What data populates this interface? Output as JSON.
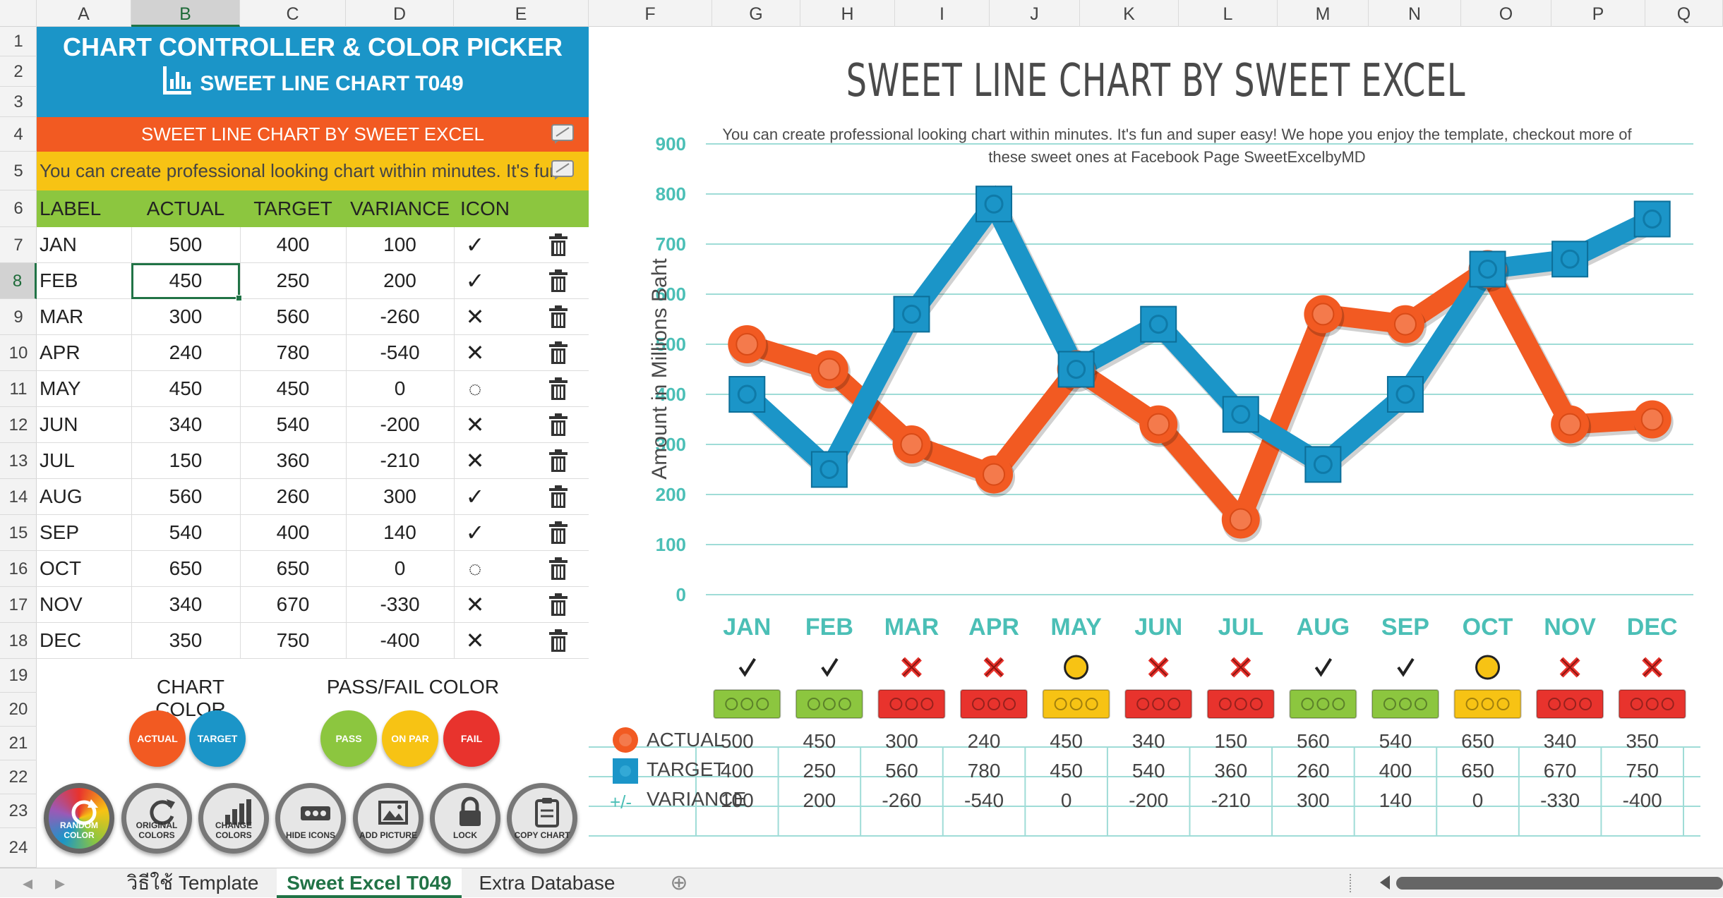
{
  "column_headers": [
    "A",
    "B",
    "C",
    "D",
    "E",
    "F",
    "G",
    "H",
    "I",
    "J",
    "K",
    "L",
    "M",
    "N",
    "O",
    "P",
    "Q"
  ],
  "row_headers": [
    "1",
    "2",
    "3",
    "4",
    "5",
    "6",
    "7",
    "8",
    "9",
    "10",
    "11",
    "12",
    "13",
    "14",
    "15",
    "16",
    "17",
    "18",
    "19",
    "20",
    "21",
    "22",
    "23",
    "24"
  ],
  "panel": {
    "title": "CHART CONTROLLER & COLOR PICKER",
    "subtitle": "SWEET LINE CHART T049",
    "chart_title_value": "SWEET LINE CHART BY SWEET EXCEL",
    "description_value": "You can create professional looking chart within minutes. It's fun and super easy! We hope you enjoy the template, checkout more of these sweet ones at Facebook Page SweetExcelbyMD",
    "headers": [
      "LABEL",
      "ACTUAL",
      "TARGET",
      "VARIANCE",
      "ICON"
    ],
    "rows": [
      {
        "label": "JAN",
        "actual": "500",
        "target": "400",
        "variance": "100",
        "icon": "✓"
      },
      {
        "label": "FEB",
        "actual": "450",
        "target": "250",
        "variance": "200",
        "icon": "✓"
      },
      {
        "label": "MAR",
        "actual": "300",
        "target": "560",
        "variance": "-260",
        "icon": "✕"
      },
      {
        "label": "APR",
        "actual": "240",
        "target": "780",
        "variance": "-540",
        "icon": "✕"
      },
      {
        "label": "MAY",
        "actual": "450",
        "target": "450",
        "variance": "0",
        "icon": "◌"
      },
      {
        "label": "JUN",
        "actual": "340",
        "target": "540",
        "variance": "-200",
        "icon": "✕"
      },
      {
        "label": "JUL",
        "actual": "150",
        "target": "360",
        "variance": "-210",
        "icon": "✕"
      },
      {
        "label": "AUG",
        "actual": "560",
        "target": "260",
        "variance": "300",
        "icon": "✓"
      },
      {
        "label": "SEP",
        "actual": "540",
        "target": "400",
        "variance": "140",
        "icon": "✓"
      },
      {
        "label": "OCT",
        "actual": "650",
        "target": "650",
        "variance": "0",
        "icon": "◌"
      },
      {
        "label": "NOV",
        "actual": "340",
        "target": "670",
        "variance": "-330",
        "icon": "✕"
      },
      {
        "label": "DEC",
        "actual": "350",
        "target": "750",
        "variance": "-400",
        "icon": "✕"
      }
    ],
    "chart_color_label": "CHART COLOR",
    "passfail_color_label": "PASS/FAIL COLOR",
    "color_dots": {
      "actual": "ACTUAL",
      "target": "TARGET",
      "pass": "PASS",
      "onpar": "ON PAR",
      "fail": "FAIL"
    },
    "buttons": {
      "random": "RANDOM COLOR",
      "original": "ORIGINAL COLORS",
      "change": "CHANGE COLORS",
      "hide": "HIDE ICONS",
      "add_picture": "ADD PICTURE",
      "lock": "LOCK",
      "copy": "COPY CHART"
    }
  },
  "colors": {
    "actual": "#f25a22",
    "target": "#1b95c8",
    "pass": "#8cc63f",
    "onpar": "#f7c314",
    "fail": "#e8332d",
    "teal": "#4bbfb6"
  },
  "chart_data": {
    "type": "line",
    "title": "SWEET LINE CHART BY SWEET EXCEL",
    "subtitle": "You can create professional looking chart within minutes. It's fun and super easy! We hope you enjoy the template, checkout more of these sweet ones at Facebook Page SweetExcelbyMD",
    "ylabel": "Amount in Millions Baht",
    "xlabel": "",
    "categories": [
      "JAN",
      "FEB",
      "MAR",
      "APR",
      "MAY",
      "JUN",
      "JUL",
      "AUG",
      "SEP",
      "OCT",
      "NOV",
      "DEC"
    ],
    "yticks": [
      "0",
      "100",
      "200",
      "300",
      "400",
      "500",
      "600",
      "700",
      "800",
      "900"
    ],
    "ylim": [
      0,
      900
    ],
    "grid": true,
    "series": [
      {
        "name": "ACTUAL",
        "values": [
          500,
          450,
          300,
          240,
          450,
          340,
          150,
          560,
          540,
          650,
          340,
          350
        ],
        "color": "#f25a22",
        "marker": "circle"
      },
      {
        "name": "TARGET",
        "values": [
          400,
          250,
          560,
          780,
          450,
          540,
          360,
          260,
          400,
          650,
          670,
          750
        ],
        "color": "#1b95c8",
        "marker": "square"
      }
    ],
    "status": [
      "pass",
      "pass",
      "fail",
      "fail",
      "par",
      "fail",
      "fail",
      "pass",
      "pass",
      "par",
      "fail",
      "fail"
    ],
    "table": {
      "actual_label": "ACTUAL",
      "target_label": "TARGET",
      "variance_sign": "+/-",
      "variance_label": "VARIANCE",
      "variance": [
        "100",
        "200",
        "-260",
        "-540",
        "0",
        "-200",
        "-210",
        "300",
        "140",
        "0",
        "-330",
        "-400"
      ]
    }
  },
  "sheet_tabs": [
    "วิธีใช้ Template",
    "Sweet Excel T049",
    "Extra Database"
  ],
  "active_tab": "Sweet Excel T049"
}
